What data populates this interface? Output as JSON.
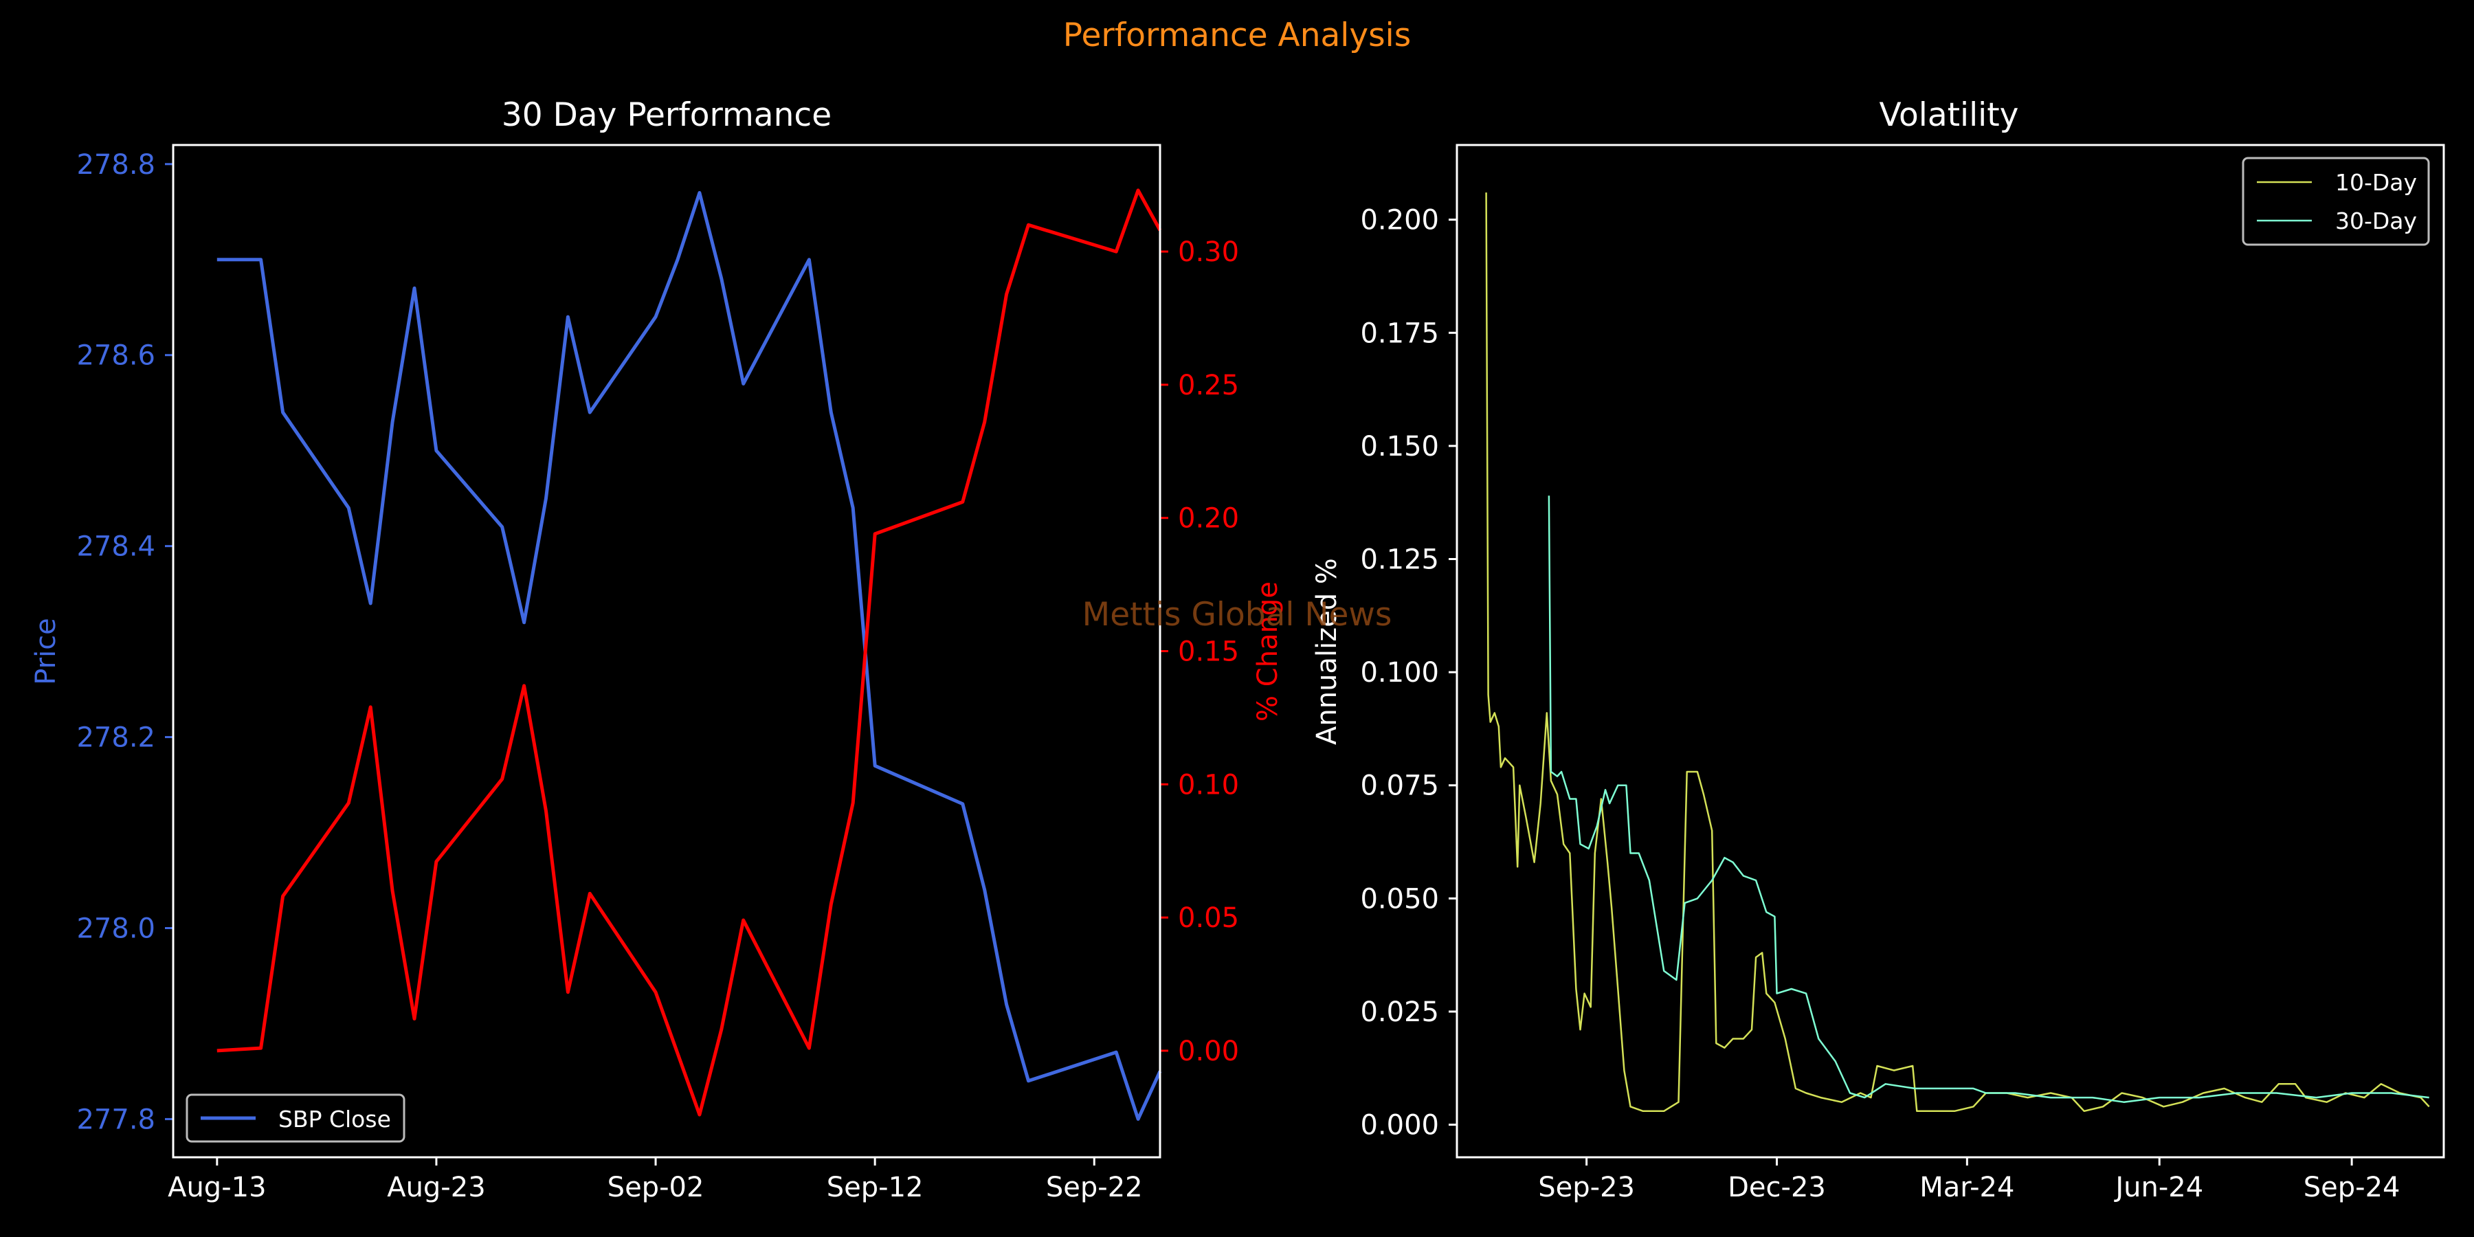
{
  "suptitle": "Performance Analysis",
  "watermark": "Mettis Global News",
  "colors": {
    "background": "#000000",
    "suptitle": "#FF8C1A",
    "price": "#4169E1",
    "pct": "#FF0000",
    "vol10": "#D4E157",
    "vol30": "#7FFFD4",
    "axis": "#FFFFFF",
    "watermark": "#8B4513"
  },
  "chart_data": [
    {
      "type": "line",
      "title": "30 Day Performance",
      "xlabel": "",
      "ylabel": "Price",
      "y2label": "% Change",
      "x_start": "2024-08-13",
      "xlim": [
        "2024-08-11",
        "2024-09-25"
      ],
      "ylim": [
        277.76,
        278.82
      ],
      "y2lim": [
        -0.04,
        0.34
      ],
      "xticks": [
        "Aug-13",
        "Aug-23",
        "Sep-02",
        "Sep-12",
        "Sep-22"
      ],
      "yticks": [
        "277.8",
        "278.0",
        "278.2",
        "278.4",
        "278.6",
        "278.8"
      ],
      "y2ticks": [
        "0.00",
        "0.05",
        "0.10",
        "0.15",
        "0.20",
        "0.25",
        "0.30"
      ],
      "legend": {
        "location": "lower-left",
        "entries": [
          "SBP Close"
        ]
      },
      "series": [
        {
          "name": "SBP Close",
          "axis": "left",
          "x": [
            "2024-08-13",
            "2024-08-15",
            "2024-08-16",
            "2024-08-19",
            "2024-08-20",
            "2024-08-21",
            "2024-08-22",
            "2024-08-23",
            "2024-08-26",
            "2024-08-27",
            "2024-08-28",
            "2024-08-29",
            "2024-08-30",
            "2024-09-02",
            "2024-09-03",
            "2024-09-04",
            "2024-09-05",
            "2024-09-06",
            "2024-09-09",
            "2024-09-10",
            "2024-09-11",
            "2024-09-12",
            "2024-09-16",
            "2024-09-17",
            "2024-09-18",
            "2024-09-19",
            "2024-09-23",
            "2024-09-24",
            "2024-09-25"
          ],
          "values": [
            278.7,
            278.7,
            278.54,
            278.44,
            278.34,
            278.53,
            278.67,
            278.5,
            278.42,
            278.32,
            278.45,
            278.64,
            278.54,
            278.64,
            278.7,
            278.77,
            278.68,
            278.57,
            278.7,
            278.54,
            278.44,
            278.17,
            278.13,
            278.04,
            277.92,
            277.84,
            277.87,
            277.8,
            277.85
          ]
        },
        {
          "name": "% Change",
          "axis": "right",
          "x": [
            "2024-08-13",
            "2024-08-15",
            "2024-08-16",
            "2024-08-19",
            "2024-08-20",
            "2024-08-21",
            "2024-08-22",
            "2024-08-23",
            "2024-08-26",
            "2024-08-27",
            "2024-08-28",
            "2024-08-29",
            "2024-08-30",
            "2024-09-02",
            "2024-09-03",
            "2024-09-04",
            "2024-09-05",
            "2024-09-06",
            "2024-09-09",
            "2024-09-10",
            "2024-09-11",
            "2024-09-12",
            "2024-09-16",
            "2024-09-17",
            "2024-09-18",
            "2024-09-19",
            "2024-09-23",
            "2024-09-24",
            "2024-09-25"
          ],
          "values": [
            0.0,
            0.001,
            0.058,
            0.093,
            0.129,
            0.06,
            0.012,
            0.071,
            0.102,
            0.137,
            0.09,
            0.022,
            0.059,
            0.022,
            -0.001,
            -0.024,
            0.008,
            0.049,
            0.001,
            0.055,
            0.093,
            0.194,
            0.206,
            0.236,
            0.284,
            0.31,
            0.3,
            0.323,
            0.308
          ]
        }
      ]
    },
    {
      "type": "line",
      "title": "Volatility",
      "xlabel": "",
      "ylabel": "Annualized %",
      "xlim": [
        "2023-07-01",
        "2024-10-15"
      ],
      "ylim": [
        -0.0072,
        0.2165
      ],
      "xticks": [
        {
          "date": "2023-09-01",
          "label": "Sep-23"
        },
        {
          "date": "2023-12-01",
          "label": "Dec-23"
        },
        {
          "date": "2024-03-01",
          "label": "Mar-24"
        },
        {
          "date": "2024-06-01",
          "label": "Jun-24"
        },
        {
          "date": "2024-09-01",
          "label": "Sep-24"
        }
      ],
      "yticks": [
        "0.000",
        "0.025",
        "0.050",
        "0.075",
        "0.100",
        "0.125",
        "0.150",
        "0.175",
        "0.200"
      ],
      "legend": {
        "location": "top-right",
        "entries": [
          "10-Day",
          "30-Day"
        ]
      },
      "series": [
        {
          "name": "10-Day",
          "points": [
            [
              "2023-07-15",
              0.206
            ],
            [
              "2023-07-16",
              0.095
            ],
            [
              "2023-07-17",
              0.089
            ],
            [
              "2023-07-19",
              0.091
            ],
            [
              "2023-07-21",
              0.088
            ],
            [
              "2023-07-22",
              0.079
            ],
            [
              "2023-07-24",
              0.081
            ],
            [
              "2023-07-26",
              0.08
            ],
            [
              "2023-07-28",
              0.079
            ],
            [
              "2023-07-30",
              0.057
            ],
            [
              "2023-07-31",
              0.075
            ],
            [
              "2023-08-03",
              0.068
            ],
            [
              "2023-08-07",
              0.058
            ],
            [
              "2023-08-10",
              0.071
            ],
            [
              "2023-08-13",
              0.091
            ],
            [
              "2023-08-15",
              0.076
            ],
            [
              "2023-08-18",
              0.073
            ],
            [
              "2023-08-21",
              0.062
            ],
            [
              "2023-08-24",
              0.06
            ],
            [
              "2023-08-27",
              0.03
            ],
            [
              "2023-08-29",
              0.021
            ],
            [
              "2023-08-31",
              0.029
            ],
            [
              "2023-09-03",
              0.026
            ],
            [
              "2023-09-05",
              0.06
            ],
            [
              "2023-09-08",
              0.072
            ],
            [
              "2023-09-11",
              0.058
            ],
            [
              "2023-09-13",
              0.048
            ],
            [
              "2023-09-16",
              0.03
            ],
            [
              "2023-09-19",
              0.012
            ],
            [
              "2023-09-22",
              0.004
            ],
            [
              "2023-09-28",
              0.003
            ],
            [
              "2023-10-08",
              0.003
            ],
            [
              "2023-10-15",
              0.005
            ],
            [
              "2023-10-18",
              0.06
            ],
            [
              "2023-10-19",
              0.078
            ],
            [
              "2023-10-24",
              0.078
            ],
            [
              "2023-10-27",
              0.073
            ],
            [
              "2023-10-31",
              0.065
            ],
            [
              "2023-11-02",
              0.018
            ],
            [
              "2023-11-06",
              0.017
            ],
            [
              "2023-11-10",
              0.019
            ],
            [
              "2023-11-15",
              0.019
            ],
            [
              "2023-11-19",
              0.021
            ],
            [
              "2023-11-21",
              0.037
            ],
            [
              "2023-11-24",
              0.038
            ],
            [
              "2023-11-26",
              0.029
            ],
            [
              "2023-11-30",
              0.027
            ],
            [
              "2023-12-05",
              0.019
            ],
            [
              "2023-12-10",
              0.008
            ],
            [
              "2023-12-15",
              0.007
            ],
            [
              "2023-12-22",
              0.006
            ],
            [
              "2024-01-01",
              0.005
            ],
            [
              "2024-01-10",
              0.007
            ],
            [
              "2024-01-15",
              0.006
            ],
            [
              "2024-01-18",
              0.013
            ],
            [
              "2024-01-26",
              0.012
            ],
            [
              "2024-02-04",
              0.013
            ],
            [
              "2024-02-06",
              0.003
            ],
            [
              "2024-02-15",
              0.003
            ],
            [
              "2024-02-24",
              0.003
            ],
            [
              "2024-03-04",
              0.004
            ],
            [
              "2024-03-10",
              0.007
            ],
            [
              "2024-03-20",
              0.007
            ],
            [
              "2024-03-30",
              0.006
            ],
            [
              "2024-04-10",
              0.007
            ],
            [
              "2024-04-20",
              0.006
            ],
            [
              "2024-04-26",
              0.003
            ],
            [
              "2024-05-05",
              0.004
            ],
            [
              "2024-05-14",
              0.007
            ],
            [
              "2024-05-24",
              0.006
            ],
            [
              "2024-06-03",
              0.004
            ],
            [
              "2024-06-12",
              0.005
            ],
            [
              "2024-06-22",
              0.007
            ],
            [
              "2024-07-02",
              0.008
            ],
            [
              "2024-07-12",
              0.006
            ],
            [
              "2024-07-20",
              0.005
            ],
            [
              "2024-07-28",
              0.009
            ],
            [
              "2024-08-05",
              0.009
            ],
            [
              "2024-08-10",
              0.006
            ],
            [
              "2024-08-20",
              0.005
            ],
            [
              "2024-08-29",
              0.007
            ],
            [
              "2024-09-07",
              0.006
            ],
            [
              "2024-09-15",
              0.009
            ],
            [
              "2024-09-24",
              0.007
            ],
            [
              "2024-10-04",
              0.006
            ],
            [
              "2024-10-08",
              0.004
            ]
          ]
        },
        {
          "name": "30-Day",
          "points": [
            [
              "2023-08-14",
              0.139
            ],
            [
              "2023-08-15",
              0.078
            ],
            [
              "2023-08-18",
              0.077
            ],
            [
              "2023-08-20",
              0.078
            ],
            [
              "2023-08-24",
              0.072
            ],
            [
              "2023-08-27",
              0.072
            ],
            [
              "2023-08-29",
              0.062
            ],
            [
              "2023-09-02",
              0.061
            ],
            [
              "2023-09-06",
              0.066
            ],
            [
              "2023-09-10",
              0.074
            ],
            [
              "2023-09-12",
              0.071
            ],
            [
              "2023-09-16",
              0.075
            ],
            [
              "2023-09-20",
              0.075
            ],
            [
              "2023-09-22",
              0.06
            ],
            [
              "2023-09-26",
              0.06
            ],
            [
              "2023-10-01",
              0.054
            ],
            [
              "2023-10-08",
              0.034
            ],
            [
              "2023-10-14",
              0.032
            ],
            [
              "2023-10-18",
              0.049
            ],
            [
              "2023-10-24",
              0.05
            ],
            [
              "2023-10-31",
              0.054
            ],
            [
              "2023-11-06",
              0.059
            ],
            [
              "2023-11-10",
              0.058
            ],
            [
              "2023-11-15",
              0.055
            ],
            [
              "2023-11-21",
              0.054
            ],
            [
              "2023-11-26",
              0.047
            ],
            [
              "2023-11-30",
              0.046
            ],
            [
              "2023-12-01",
              0.029
            ],
            [
              "2023-12-08",
              0.03
            ],
            [
              "2023-12-15",
              0.029
            ],
            [
              "2023-12-21",
              0.019
            ],
            [
              "2023-12-29",
              0.014
            ],
            [
              "2024-01-05",
              0.007
            ],
            [
              "2024-01-12",
              0.006
            ],
            [
              "2024-01-22",
              0.009
            ],
            [
              "2024-02-05",
              0.008
            ],
            [
              "2024-02-20",
              0.008
            ],
            [
              "2024-03-04",
              0.008
            ],
            [
              "2024-03-10",
              0.007
            ],
            [
              "2024-03-24",
              0.007
            ],
            [
              "2024-04-10",
              0.006
            ],
            [
              "2024-04-30",
              0.006
            ],
            [
              "2024-05-15",
              0.005
            ],
            [
              "2024-06-01",
              0.006
            ],
            [
              "2024-06-20",
              0.006
            ],
            [
              "2024-07-08",
              0.007
            ],
            [
              "2024-07-27",
              0.007
            ],
            [
              "2024-08-15",
              0.006
            ],
            [
              "2024-09-01",
              0.007
            ],
            [
              "2024-09-20",
              0.007
            ],
            [
              "2024-10-08",
              0.006
            ]
          ]
        }
      ]
    }
  ]
}
